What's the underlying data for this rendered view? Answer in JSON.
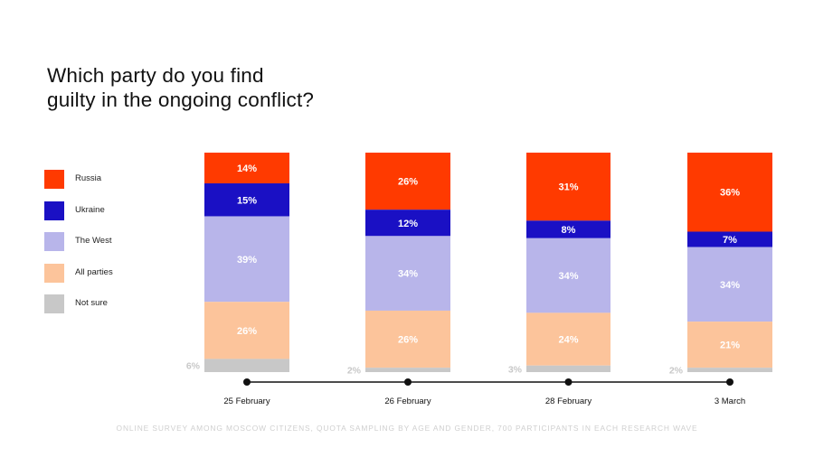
{
  "title_lines": [
    "Which party do you find",
    "guilty in the ongoing conflict?"
  ],
  "footnote": "ONLINE SURVEY AMONG MOSCOW CITIZENS, QUOTA SAMPLING BY AGE AND GENDER, 700 PARTICIPANTS IN EACH RESEARCH WAVE",
  "legend": [
    {
      "label": "Russia",
      "color": "#ff3a00"
    },
    {
      "label": "Ukraine",
      "color": "#1a10c4"
    },
    {
      "label": "The West",
      "color": "#b8b5ea"
    },
    {
      "label": "All parties",
      "color": "#fcc49b"
    },
    {
      "label": "Not sure",
      "color": "#c8c8c8"
    }
  ],
  "chart_data": {
    "type": "bar",
    "stacked": true,
    "orientation": "vertical",
    "title": "Which party do you find guilty in the ongoing conflict?",
    "categories": [
      "25 February",
      "26 February",
      "28 February",
      "3 March"
    ],
    "series": [
      {
        "name": "Russia",
        "color": "#ff3a00",
        "values": [
          14,
          26,
          31,
          36
        ],
        "labels": [
          "14%",
          "26%",
          "31%",
          "36%"
        ]
      },
      {
        "name": "Ukraine",
        "color": "#1a10c4",
        "values": [
          15,
          12,
          8,
          7
        ],
        "labels": [
          "15%",
          "12%",
          "8%",
          "7%"
        ]
      },
      {
        "name": "The West",
        "color": "#b8b5ea",
        "values": [
          39,
          34,
          34,
          34
        ],
        "labels": [
          "39%",
          "34%",
          "34%",
          "34%"
        ]
      },
      {
        "name": "All parties",
        "color": "#fcc49b",
        "values": [
          26,
          26,
          24,
          21
        ],
        "labels": [
          "26%",
          "26%",
          "24%",
          "21%"
        ]
      },
      {
        "name": "Not sure",
        "color": "#c8c8c8",
        "values": [
          6,
          2,
          3,
          2
        ],
        "labels": [
          "6%",
          "2%",
          "3%",
          "2%"
        ]
      }
    ],
    "label_colors": {
      "Russia": "#ffffff",
      "Ukraine": "#ffffff",
      "The West": "#ffffff",
      "All parties": "#ffffff",
      "Not sure": "#c8c8c8"
    },
    "axis_color": "#111111",
    "legend_position": "left"
  }
}
